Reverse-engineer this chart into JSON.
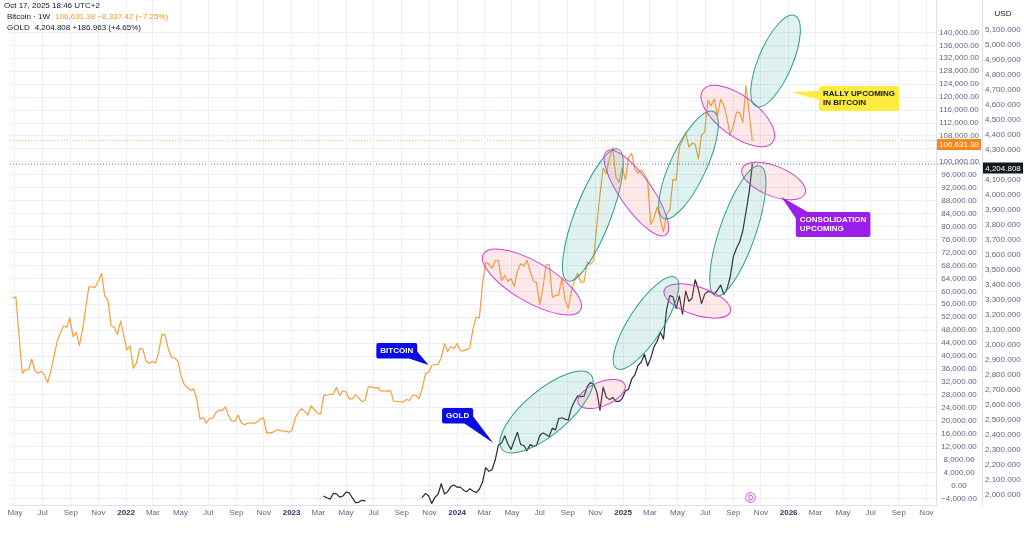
{
  "chart_data": {
    "type": "line",
    "xlim": [
      "2021-04-20",
      "2026-11-22"
    ],
    "xticks": [
      {
        "value": "2021-05",
        "label": "May"
      },
      {
        "value": "2021-07",
        "label": "Jul"
      },
      {
        "value": "2021-09",
        "label": "Sep"
      },
      {
        "value": "2021-11",
        "label": "Nov"
      },
      {
        "value": "2022",
        "label": "2022"
      },
      {
        "value": "2022-03",
        "label": "Mar"
      },
      {
        "value": "2022-05",
        "label": "May"
      },
      {
        "value": "2022-07",
        "label": "Jul"
      },
      {
        "value": "2022-09",
        "label": "Sep"
      },
      {
        "value": "2022-11",
        "label": "Nov"
      },
      {
        "value": "2023",
        "label": "2023"
      },
      {
        "value": "2023-03",
        "label": "Mar"
      },
      {
        "value": "2023-05",
        "label": "May"
      },
      {
        "value": "2023-07",
        "label": "Jul"
      },
      {
        "value": "2023-09",
        "label": "Sep"
      },
      {
        "value": "2023-11",
        "label": "Nov"
      },
      {
        "value": "2024",
        "label": "2024"
      },
      {
        "value": "2024-03",
        "label": "Mar"
      },
      {
        "value": "2024-05",
        "label": "May"
      },
      {
        "value": "2024-07",
        "label": "Jul"
      },
      {
        "value": "2024-09",
        "label": "Sep"
      },
      {
        "value": "2024-11",
        "label": "Nov"
      },
      {
        "value": "2025",
        "label": "2025"
      },
      {
        "value": "2025-03",
        "label": "Mar"
      },
      {
        "value": "2025-05",
        "label": "May"
      },
      {
        "value": "2025-07",
        "label": "Jul"
      },
      {
        "value": "2025-09",
        "label": "Sep"
      },
      {
        "value": "2025-11",
        "label": "Nov"
      },
      {
        "value": "2026",
        "label": "2026"
      },
      {
        "value": "2026-03",
        "label": "Mar"
      },
      {
        "value": "2026-05",
        "label": "May"
      },
      {
        "value": "2026-07",
        "label": "Jul"
      },
      {
        "value": "2026-09",
        "label": "Sep"
      },
      {
        "value": "2026-11",
        "label": "Nov"
      }
    ],
    "ylim": [
      -6000,
      150000
    ],
    "yticks": [
      {
        "value": -4000,
        "label": "−4,000.00"
      },
      {
        "value": 0,
        "label": "0.00"
      },
      {
        "value": 4000,
        "label": "4,000.00"
      },
      {
        "value": 8000,
        "label": "8,000.00"
      },
      {
        "value": 12000,
        "label": "12,000.00"
      },
      {
        "value": 16000,
        "label": "16,000.00"
      },
      {
        "value": 20000,
        "label": "20,000.00"
      },
      {
        "value": 24000,
        "label": "24,000.00"
      },
      {
        "value": 28000,
        "label": "28,000.00"
      },
      {
        "value": 32000,
        "label": "32,000.00"
      },
      {
        "value": 36000,
        "label": "36,000.00"
      },
      {
        "value": 40000,
        "label": "40,000.00"
      },
      {
        "value": 44000,
        "label": "44,000.00"
      },
      {
        "value": 48000,
        "label": "48,000.00"
      },
      {
        "value": 52000,
        "label": "52,000.00"
      },
      {
        "value": 56000,
        "label": "56,000.00"
      },
      {
        "value": 60000,
        "label": "60,000.00"
      },
      {
        "value": 64000,
        "label": "64,000.00"
      },
      {
        "value": 68000,
        "label": "68,000.00"
      },
      {
        "value": 72000,
        "label": "72,000.00"
      },
      {
        "value": 76000,
        "label": "76,000.00"
      },
      {
        "value": 80000,
        "label": "80,000.00"
      },
      {
        "value": 84000,
        "label": "84,000.00"
      },
      {
        "value": 88000,
        "label": "88,000.00"
      },
      {
        "value": 92000,
        "label": "92,000.00"
      },
      {
        "value": 96000,
        "label": "96,000.00"
      },
      {
        "value": 100000,
        "label": "100,000.00"
      },
      {
        "value": 104000,
        "label": null
      },
      {
        "value": 108000,
        "label": "108,000.00"
      },
      {
        "value": 112000,
        "label": "112,000.00"
      },
      {
        "value": 116000,
        "label": "116,000.00"
      },
      {
        "value": 120000,
        "label": "120,000.00"
      },
      {
        "value": 124000,
        "label": "124,000.00"
      },
      {
        "value": 128000,
        "label": "128,000.00"
      },
      {
        "value": 132000,
        "label": "132,000.00"
      },
      {
        "value": 136000,
        "label": "136,000.00"
      },
      {
        "value": 140000,
        "label": "140,000.00"
      }
    ],
    "y2lim": [
      1930,
      5300
    ],
    "y2ticks": [
      {
        "value": 2000,
        "label": "2,000.000"
      },
      {
        "value": 2100,
        "label": "2,100.000"
      },
      {
        "value": 2200,
        "label": "2,200.000"
      },
      {
        "value": 2300,
        "label": "2,300.000"
      },
      {
        "value": 2400,
        "label": "2,400.000"
      },
      {
        "value": 2500,
        "label": "2,500.000"
      },
      {
        "value": 2600,
        "label": "2,600.000"
      },
      {
        "value": 2700,
        "label": "2,700.000"
      },
      {
        "value": 2800,
        "label": "2,800.000"
      },
      {
        "value": 2900,
        "label": "2,900.000"
      },
      {
        "value": 3000,
        "label": "3,000.000"
      },
      {
        "value": 3100,
        "label": "3,100.000"
      },
      {
        "value": 3200,
        "label": "3,200.000"
      },
      {
        "value": 3300,
        "label": "3,300.000"
      },
      {
        "value": 3400,
        "label": "3,400.000"
      },
      {
        "value": 3500,
        "label": "3,500.000"
      },
      {
        "value": 3600,
        "label": "3,600.000"
      },
      {
        "value": 3700,
        "label": "3,700.000"
      },
      {
        "value": 3800,
        "label": "3,800.000"
      },
      {
        "value": 3900,
        "label": "3,900.000"
      },
      {
        "value": 4000,
        "label": "4,000.000"
      },
      {
        "value": 4100,
        "label": "4,100.000"
      },
      {
        "value": 4300,
        "label": "4,300.000"
      },
      {
        "value": 4400,
        "label": "4,400.000"
      },
      {
        "value": 4500,
        "label": "4,500.000"
      },
      {
        "value": 4600,
        "label": "4,600.000"
      },
      {
        "value": 4700,
        "label": "4,700.000"
      },
      {
        "value": 4800,
        "label": "4,800.000"
      },
      {
        "value": 4900,
        "label": "4,900.000"
      },
      {
        "value": 5000,
        "label": "5,000.000"
      },
      {
        "value": 5100,
        "label": "5,100.000"
      }
    ],
    "y2label": "USD",
    "grid": true,
    "series": [
      {
        "color": "#f5a03a",
        "x": [
          "2021-04-26",
          "2021-05-03",
          "2021-05-10",
          "2021-05-17",
          "2021-05-24",
          "2021-05-31",
          "2021-06-07",
          "2021-06-14",
          "2021-06-21",
          "2021-06-28",
          "2021-07-05",
          "2021-07-12",
          "2021-07-19",
          "2021-07-26",
          "2021-08-02",
          "2021-08-09",
          "2021-08-16",
          "2021-08-23",
          "2021-08-30",
          "2021-09-06",
          "2021-09-13",
          "2021-09-20",
          "2021-09-27",
          "2021-10-04",
          "2021-10-11",
          "2021-10-18",
          "2021-10-25",
          "2021-11-01",
          "2021-11-08",
          "2021-11-15",
          "2021-11-22",
          "2021-11-29",
          "2021-12-06",
          "2021-12-13",
          "2021-12-20",
          "2021-12-27",
          "2022-01-03",
          "2022-01-10",
          "2022-01-17",
          "2022-01-24",
          "2022-01-31",
          "2022-02-07",
          "2022-02-14",
          "2022-02-21",
          "2022-02-28",
          "2022-03-07",
          "2022-03-14",
          "2022-03-21",
          "2022-03-28",
          "2022-04-04",
          "2022-04-11",
          "2022-04-18",
          "2022-04-25",
          "2022-05-02",
          "2022-05-09",
          "2022-05-16",
          "2022-05-23",
          "2022-05-30",
          "2022-06-06",
          "2022-06-13",
          "2022-06-20",
          "2022-06-27",
          "2022-07-04",
          "2022-07-11",
          "2022-07-18",
          "2022-07-25",
          "2022-08-01",
          "2022-08-08",
          "2022-08-15",
          "2022-08-22",
          "2022-08-29",
          "2022-09-05",
          "2022-09-12",
          "2022-09-19",
          "2022-09-26",
          "2022-10-03",
          "2022-10-10",
          "2022-10-17",
          "2022-10-24",
          "2022-10-31",
          "2022-11-07",
          "2022-11-14",
          "2022-11-21",
          "2022-11-28",
          "2022-12-05",
          "2022-12-12",
          "2022-12-19",
          "2022-12-26",
          "2023-01-02",
          "2023-01-09",
          "2023-01-16",
          "2023-01-23",
          "2023-01-30",
          "2023-02-06",
          "2023-02-13",
          "2023-02-20",
          "2023-02-27",
          "2023-03-06",
          "2023-03-13",
          "2023-03-20",
          "2023-03-27",
          "2023-04-03",
          "2023-04-10",
          "2023-04-17",
          "2023-04-24",
          "2023-05-01",
          "2023-05-08",
          "2023-05-15",
          "2023-05-22",
          "2023-05-29",
          "2023-06-05",
          "2023-06-12",
          "2023-06-19",
          "2023-06-26",
          "2023-07-03",
          "2023-07-10",
          "2023-07-17",
          "2023-07-24",
          "2023-07-31",
          "2023-08-07",
          "2023-08-14",
          "2023-08-21",
          "2023-08-28",
          "2023-09-04",
          "2023-09-11",
          "2023-09-18",
          "2023-09-25",
          "2023-10-02",
          "2023-10-09",
          "2023-10-16",
          "2023-10-23",
          "2023-10-30",
          "2023-11-06",
          "2023-11-13",
          "2023-11-20",
          "2023-11-27",
          "2023-12-04",
          "2023-12-11",
          "2023-12-18",
          "2023-12-25",
          "2024-01-01",
          "2024-01-08",
          "2024-01-15",
          "2024-01-22",
          "2024-01-29",
          "2024-02-05",
          "2024-02-12",
          "2024-02-19",
          "2024-02-26",
          "2024-03-04",
          "2024-03-11",
          "2024-03-18",
          "2024-03-25",
          "2024-04-01",
          "2024-04-08",
          "2024-04-15",
          "2024-04-22",
          "2024-04-29",
          "2024-05-06",
          "2024-05-13",
          "2024-05-20",
          "2024-05-27",
          "2024-06-03",
          "2024-06-10",
          "2024-06-17",
          "2024-06-24",
          "2024-07-01",
          "2024-07-08",
          "2024-07-15",
          "2024-07-22",
          "2024-07-29",
          "2024-08-05",
          "2024-08-12",
          "2024-08-19",
          "2024-08-26",
          "2024-09-02",
          "2024-09-09",
          "2024-09-16",
          "2024-09-23",
          "2024-09-30",
          "2024-10-07",
          "2024-10-14",
          "2024-10-21",
          "2024-10-28",
          "2024-11-04",
          "2024-11-11",
          "2024-11-18",
          "2024-11-25",
          "2024-12-02",
          "2024-12-09",
          "2024-12-16",
          "2024-12-23",
          "2024-12-30",
          "2025-01-06",
          "2025-01-13",
          "2025-01-20",
          "2025-01-27",
          "2025-02-03",
          "2025-02-10",
          "2025-02-17",
          "2025-02-24",
          "2025-03-03",
          "2025-03-10",
          "2025-03-17",
          "2025-03-24",
          "2025-03-31",
          "2025-04-07",
          "2025-04-14",
          "2025-04-21",
          "2025-04-28",
          "2025-05-05",
          "2025-05-12",
          "2025-05-19",
          "2025-05-26",
          "2025-06-02",
          "2025-06-09",
          "2025-06-16",
          "2025-06-23",
          "2025-06-30",
          "2025-07-07",
          "2025-07-14",
          "2025-07-21",
          "2025-07-28",
          "2025-08-04",
          "2025-08-11",
          "2025-08-18",
          "2025-08-25",
          "2025-09-01",
          "2025-09-08",
          "2025-09-15",
          "2025-09-22",
          "2025-09-29",
          "2025-10-06",
          "2025-10-13"
        ],
        "values": [
          58000,
          58200,
          46400,
          34700,
          35700,
          35800,
          39100,
          35500,
          34700,
          35300,
          34200,
          31800,
          35400,
          39800,
          44600,
          47100,
          49300,
          48900,
          51800,
          46000,
          47300,
          43200,
          48200,
          54900,
          61500,
          61300,
          61300,
          63300,
          65500,
          58600,
          57300,
          49400,
          48900,
          46700,
          50800,
          46200,
          41900,
          43100,
          36300,
          37900,
          42400,
          42200,
          38400,
          37700,
          38400,
          37800,
          41300,
          46800,
          46400,
          42200,
          39700,
          39400,
          38500,
          34100,
          31300,
          30300,
          29400,
          29900,
          26600,
          20600,
          21000,
          19300,
          20800,
          20800,
          22600,
          23300,
          23200,
          24300,
          21500,
          20000,
          19800,
          21800,
          19400,
          18800,
          19300,
          19400,
          19200,
          19600,
          20600,
          20900,
          16300,
          16300,
          16500,
          17100,
          17100,
          16800,
          16800,
          16500,
          17100,
          20900,
          22700,
          23700,
          23000,
          21800,
          24600,
          23500,
          22400,
          22100,
          28000,
          27900,
          28200,
          28300,
          30300,
          27800,
          29300,
          28900,
          26800,
          26800,
          28100,
          27100,
          25900,
          26300,
          30500,
          30500,
          30200,
          30300,
          29200,
          29300,
          29100,
          29400,
          26100,
          26000,
          25900,
          25800,
          26600,
          26300,
          27900,
          27900,
          26900,
          29900,
          34500,
          35000,
          37100,
          37400,
          37400,
          39500,
          43800,
          41400,
          43000,
          42300,
          43900,
          41700,
          41600,
          42000,
          42600,
          48300,
          52100,
          51700,
          62400,
          68900,
          68400,
          67200,
          69600,
          69400,
          63400,
          64900,
          63100,
          63900,
          61500,
          66300,
          68500,
          67800,
          69600,
          66200,
          63200,
          62700,
          55900,
          60800,
          68200,
          68300,
          58200,
          58700,
          58900,
          64200,
          57300,
          54800,
          60000,
          63600,
          65600,
          62800,
          62900,
          69000,
          68400,
          69500,
          80400,
          89900,
          98000,
          96400,
          101200,
          104400,
          95300,
          93700,
          98300,
          94500,
          101300,
          102600,
          97700,
          96500,
          97500,
          96300,
          94300,
          80700,
          82600,
          86100,
          82300,
          78400,
          83800,
          85200,
          94600,
          94300,
          104600,
          106500,
          109000,
          104600,
          105700,
          105500,
          100900,
          108400,
          109200,
          119100,
          117300,
          119400,
          114200,
          119300,
          117500,
          113500,
          108300,
          111100,
          115300,
          115300,
          112200,
          123500,
          115100,
          106600
        ]
      },
      {
        "color": "#262a33",
        "axis": "y2",
        "x": [
          "2023-03-13",
          "2023-03-20",
          "2023-03-27",
          "2023-04-03",
          "2023-04-10",
          "2023-04-17",
          "2023-04-24",
          "2023-05-01",
          "2023-05-08",
          "2023-05-15",
          "2023-05-22",
          "2023-05-29",
          "2023-06-05",
          "2023-06-12",
          "2023-06-19",
          "2023-10-16",
          "2023-10-23",
          "2023-10-30",
          "2023-11-06",
          "2023-11-13",
          "2023-11-20",
          "2023-11-27",
          "2023-12-04",
          "2023-12-11",
          "2023-12-18",
          "2023-12-25",
          "2024-01-01",
          "2024-01-08",
          "2024-01-15",
          "2024-01-22",
          "2024-01-29",
          "2024-02-05",
          "2024-02-12",
          "2024-02-19",
          "2024-02-26",
          "2024-03-04",
          "2024-03-11",
          "2024-03-18",
          "2024-03-25",
          "2024-04-01",
          "2024-04-08",
          "2024-04-15",
          "2024-04-22",
          "2024-04-29",
          "2024-05-06",
          "2024-05-13",
          "2024-05-20",
          "2024-05-27",
          "2024-06-03",
          "2024-06-10",
          "2024-06-17",
          "2024-06-24",
          "2024-07-01",
          "2024-07-08",
          "2024-07-15",
          "2024-07-22",
          "2024-07-29",
          "2024-08-05",
          "2024-08-12",
          "2024-08-19",
          "2024-08-26",
          "2024-09-02",
          "2024-09-09",
          "2024-09-16",
          "2024-09-23",
          "2024-09-30",
          "2024-10-07",
          "2024-10-14",
          "2024-10-21",
          "2024-10-28",
          "2024-11-04",
          "2024-11-11",
          "2024-11-18",
          "2024-11-25",
          "2024-12-02",
          "2024-12-09",
          "2024-12-16",
          "2024-12-23",
          "2024-12-30",
          "2025-01-06",
          "2025-01-13",
          "2025-01-20",
          "2025-01-27",
          "2025-02-03",
          "2025-02-10",
          "2025-02-17",
          "2025-02-24",
          "2025-03-03",
          "2025-03-10",
          "2025-03-17",
          "2025-03-24",
          "2025-03-31",
          "2025-04-07",
          "2025-04-14",
          "2025-04-21",
          "2025-04-28",
          "2025-05-05",
          "2025-05-12",
          "2025-05-19",
          "2025-05-26",
          "2025-06-02",
          "2025-06-09",
          "2025-06-16",
          "2025-06-23",
          "2025-06-30",
          "2025-07-07",
          "2025-07-14",
          "2025-07-21",
          "2025-07-28",
          "2025-08-04",
          "2025-08-11",
          "2025-08-18",
          "2025-08-25",
          "2025-09-01",
          "2025-09-08",
          "2025-09-15",
          "2025-09-22",
          "2025-09-29",
          "2025-10-06",
          "2025-10-13"
        ],
        "values": [
          1989,
          1978,
          1969,
          2007,
          2004,
          1983,
          1990,
          2016,
          2011,
          1977,
          1946,
          1948,
          1961,
          1958,
          null,
          1981,
          2006,
          1992,
          1940,
          1981,
          2002,
          2072,
          2004,
          2019,
          2053,
          2063,
          2049,
          2049,
          2029,
          2018,
          2039,
          2024,
          2013,
          2035,
          2083,
          2179,
          2155,
          2165,
          2230,
          2330,
          2344,
          2392,
          2337,
          2301,
          2360,
          2415,
          2334,
          2327,
          2293,
          2333,
          2322,
          2326,
          2392,
          2411,
          2400,
          2387,
          2443,
          2431,
          2507,
          2512,
          2503,
          2497,
          2577,
          2622,
          2658,
          2653,
          2657,
          2721,
          2747,
          2736,
          2685,
          2563,
          2716,
          2650,
          2633,
          2648,
          2622,
          2621,
          2640,
          2690,
          2703,
          2771,
          2799,
          2861,
          2883,
          2936,
          2858,
          2910,
          2984,
          3023,
          3084,
          3037,
          3237,
          3327,
          3319,
          3240,
          3325,
          3203,
          3357,
          3289,
          3310,
          3433,
          3368,
          3274,
          3337,
          3355,
          3350,
          3337,
          3363,
          3398,
          3336,
          3371,
          3448,
          3586,
          3643,
          3685,
          3760,
          3886,
          4018,
          4205
        ]
      }
    ],
    "ref_lines": [
      {
        "axis": "y",
        "value": 106631.38,
        "label": "106,631.38",
        "color": "#f7861c",
        "line_style": "dotted"
      },
      {
        "axis": "y2",
        "value": 4204.808,
        "label": "4,204.808",
        "color": "#131722",
        "line_style": "dotted"
      }
    ],
    "annotations": [
      "Oct 17, 2025 18:46 UTC+2",
      "Bitcoin · 1W",
      "106,631.38 −8,337.42 (−7.25%)",
      "GOLD",
      "4,204.808 +186.963 (+4.65%)",
      "BITCOIN",
      "GOLD",
      "RALLY UPCOMING IN BITCOIN",
      "CONSOLIDATION UPCOMING"
    ]
  }
}
